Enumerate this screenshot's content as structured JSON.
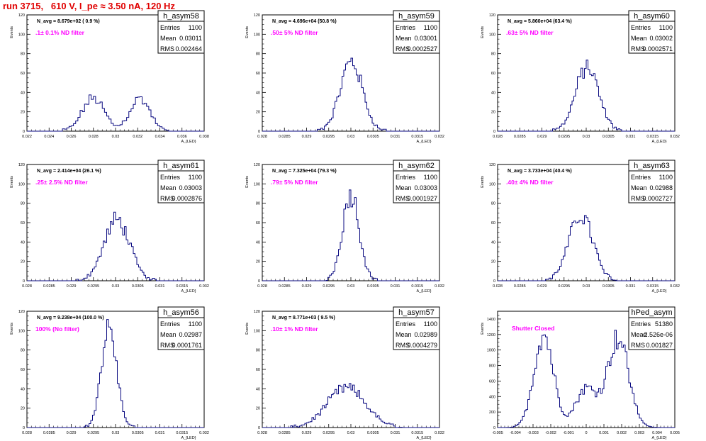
{
  "header": {
    "title": "run 3715,   610 V, I_pe ≈ 3.50 nA, 120 Hz"
  },
  "colors": {
    "histogram": "#0a0a80",
    "filter_label": "#ff00ff",
    "title": "#e00000",
    "frame": "#000000"
  },
  "stat_labels": {
    "entries": "Entries",
    "mean": "Mean",
    "rms": "RMS"
  },
  "chart_data": [
    {
      "type": "histogram",
      "name": "h_asym58",
      "ylabel": "Events",
      "xlabel": "A_{LED}",
      "navg": "N_avg = 8.679e+02 ( 0.9 %)",
      "annotation": ".1± 0.1% ND filter",
      "stats": {
        "entries": "1100",
        "mean": "0.03011",
        "rms": "0.002464"
      },
      "xlim": [
        0.022,
        0.038
      ],
      "ylim": [
        0,
        120
      ],
      "xticks": [
        "0.022",
        "0.024",
        "0.026",
        "0.028",
        "0.03",
        "0.032",
        "0.034",
        "0.036",
        "0.038"
      ],
      "yticks": [
        "0",
        "20",
        "40",
        "60",
        "80",
        "100",
        "120"
      ],
      "peaks": [
        {
          "mu": 0.028,
          "sigma": 0.001,
          "amp": 34
        },
        {
          "mu": 0.0322,
          "sigma": 0.0009,
          "amp": 34
        }
      ],
      "bin_width": 0.0002
    },
    {
      "type": "histogram",
      "name": "h_asym59",
      "ylabel": "Events",
      "xlabel": "A_{LED}",
      "navg": "N_avg = 4.696e+04 (50.8 %)",
      "annotation": ".50± 5% ND filter",
      "stats": {
        "entries": "1100",
        "mean": "0.03001",
        "rms": "0.0002527"
      },
      "xlim": [
        0.028,
        0.032
      ],
      "ylim": [
        0,
        120
      ],
      "xticks": [
        "0.028",
        "0.0285",
        "0.029",
        "0.0295",
        "0.03",
        "0.0305",
        "0.031",
        "0.0315",
        "0.032"
      ],
      "yticks": [
        "0",
        "20",
        "40",
        "60",
        "80",
        "100",
        "120"
      ],
      "peaks": [
        {
          "mu": 0.03001,
          "sigma": 0.00025,
          "amp": 72
        }
      ],
      "bin_width": 4e-05
    },
    {
      "type": "histogram",
      "name": "h_asym60",
      "ylabel": "Events",
      "xlabel": "A_{LED}",
      "navg": "N_avg = 5.860e+04 (63.4 %)",
      "annotation": ".63± 5% ND filter",
      "stats": {
        "entries": "1100",
        "mean": "0.03002",
        "rms": "0.0002571"
      },
      "xlim": [
        0.028,
        0.032
      ],
      "ylim": [
        0,
        120
      ],
      "xticks": [
        "0.028",
        "0.0285",
        "0.029",
        "0.0295",
        "0.03",
        "0.0305",
        "0.031",
        "0.0315",
        "0.032"
      ],
      "yticks": [
        "0",
        "20",
        "40",
        "60",
        "80",
        "100",
        "120"
      ],
      "peaks": [
        {
          "mu": 0.03002,
          "sigma": 0.00026,
          "amp": 66
        }
      ],
      "bin_width": 4e-05
    },
    {
      "type": "histogram",
      "name": "h_asym61",
      "ylabel": "Events",
      "xlabel": "A_{LED}",
      "navg": "N_avg = 2.414e+04 (26.1 %)",
      "annotation": ".25± 2.5% ND filter",
      "stats": {
        "entries": "1100",
        "mean": "0.03003",
        "rms": "0.0002876"
      },
      "xlim": [
        0.028,
        0.032
      ],
      "ylim": [
        0,
        120
      ],
      "xticks": [
        "0.028",
        "0.0285",
        "0.029",
        "0.0295",
        "0.03",
        "0.0305",
        "0.031",
        "0.0315",
        "0.032"
      ],
      "yticks": [
        "0",
        "20",
        "40",
        "60",
        "80",
        "100",
        "120"
      ],
      "peaks": [
        {
          "mu": 0.03003,
          "sigma": 0.00029,
          "amp": 63
        }
      ],
      "bin_width": 4e-05
    },
    {
      "type": "histogram",
      "name": "h_asym62",
      "ylabel": "Events",
      "xlabel": "A_{LED}",
      "navg": "N_avg = 7.325e+04 (79.3 %)",
      "annotation": ".79± 5% ND filter",
      "stats": {
        "entries": "1100",
        "mean": "0.03003",
        "rms": "0.0001927"
      },
      "xlim": [
        0.028,
        0.032
      ],
      "ylim": [
        0,
        120
      ],
      "xticks": [
        "0.028",
        "0.0285",
        "0.029",
        "0.0295",
        "0.03",
        "0.0305",
        "0.031",
        "0.0315",
        "0.032"
      ],
      "yticks": [
        "0",
        "20",
        "40",
        "60",
        "80",
        "100",
        "120"
      ],
      "peaks": [
        {
          "mu": 0.03,
          "sigma": 0.00019,
          "amp": 90
        }
      ],
      "bin_width": 4e-05
    },
    {
      "type": "histogram",
      "name": "h_asym63",
      "ylabel": "Events",
      "xlabel": "A_{LED}",
      "navg": "N_avg = 3.733e+04 (40.4 %)",
      "annotation": ".40± 4% ND filter",
      "stats": {
        "entries": "1100",
        "mean": "0.02988",
        "rms": "0.0002727"
      },
      "xlim": [
        0.028,
        0.032
      ],
      "ylim": [
        0,
        120
      ],
      "xticks": [
        "0.028",
        "0.0285",
        "0.029",
        "0.0295",
        "0.03",
        "0.0305",
        "0.031",
        "0.0315",
        "0.032"
      ],
      "yticks": [
        "0",
        "20",
        "40",
        "60",
        "80",
        "100",
        "120"
      ],
      "peaks": [
        {
          "mu": 0.02988,
          "sigma": 0.00027,
          "amp": 68
        }
      ],
      "bin_width": 4e-05
    },
    {
      "type": "histogram",
      "name": "h_asym56",
      "ylabel": "Events",
      "xlabel": "A_{LED}",
      "navg": "N_avg = 9.238e+04 (100.0 %)",
      "annotation": "100% (No filter)",
      "stats": {
        "entries": "1100",
        "mean": "0.02987",
        "rms": "0.0001761"
      },
      "xlim": [
        0.028,
        0.032
      ],
      "ylim": [
        0,
        120
      ],
      "xticks": [
        "0.028",
        "0.0285",
        "0.029",
        "0.0295",
        "0.03",
        "0.0305",
        "0.031",
        "0.0315",
        "0.032"
      ],
      "yticks": [
        "0",
        "20",
        "40",
        "60",
        "80",
        "100",
        "120"
      ],
      "peaks": [
        {
          "mu": 0.02985,
          "sigma": 0.000175,
          "amp": 102
        }
      ],
      "bin_width": 4e-05
    },
    {
      "type": "histogram",
      "name": "h_asym57",
      "ylabel": "Events",
      "xlabel": "A_{LED}",
      "navg": "N_avg = 8.771e+03 ( 9.5 %)",
      "annotation": ".10± 1% ND filter",
      "stats": {
        "entries": "1100",
        "mean": "0.02989",
        "rms": "0.0004279"
      },
      "xlim": [
        0.028,
        0.032
      ],
      "ylim": [
        0,
        120
      ],
      "xticks": [
        "0.028",
        "0.0285",
        "0.029",
        "0.0295",
        "0.03",
        "0.0305",
        "0.031",
        "0.0315",
        "0.032"
      ],
      "yticks": [
        "0",
        "20",
        "40",
        "60",
        "80",
        "100",
        "120"
      ],
      "peaks": [
        {
          "mu": 0.0299,
          "sigma": 0.00043,
          "amp": 41
        }
      ],
      "bin_width": 4e-05
    },
    {
      "type": "histogram",
      "name": "hPed_asym",
      "ylabel": "Events",
      "xlabel": "A_{LED}",
      "navg": "",
      "annotation": "Shutter Closed",
      "stats": {
        "entries": "51380",
        "mean": "-2.526e-06",
        "rms": "0.001827"
      },
      "xlim": [
        -0.005,
        0.005
      ],
      "ylim": [
        0,
        1500
      ],
      "xticks": [
        "-0.005",
        "-0.004",
        "-0.003",
        "-0.002",
        "-0.001",
        "0",
        "0.001",
        "0.002",
        "0.003",
        "0.004",
        "0.005"
      ],
      "yticks": [
        "0",
        "200",
        "400",
        "600",
        "800",
        "1000",
        "1200",
        "1400"
      ],
      "peaks": [
        {
          "mu": -0.0024,
          "sigma": 0.00055,
          "amp": 1200
        },
        {
          "mu": 0.0,
          "sigma": 0.0006,
          "amp": 500
        },
        {
          "mu": 0.0018,
          "sigma": 0.0006,
          "amp": 1150
        }
      ],
      "bin_width": 0.0001
    }
  ]
}
